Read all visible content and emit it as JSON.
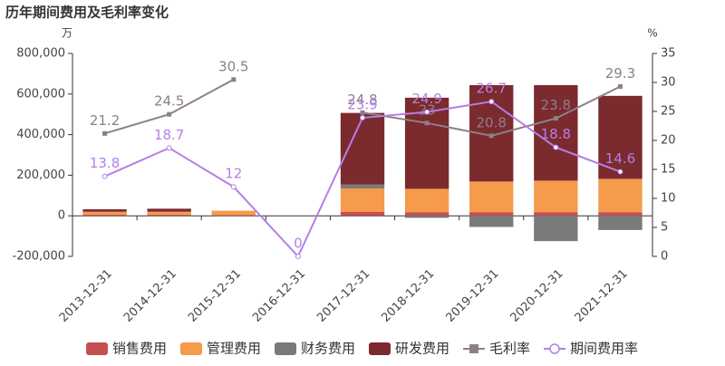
{
  "chart_data": {
    "type": "bar-line",
    "title": "历年期间费用及毛利率变化",
    "y_unit": "万",
    "y2_unit": "%",
    "categories": [
      "2013-12-31",
      "2014-12-31",
      "2015-12-31",
      "2016-12-31",
      "2017-12-31",
      "2018-12-31",
      "2019-12-31",
      "2020-12-31",
      "2021-12-31"
    ],
    "series": [
      {
        "name": "销售费用",
        "color": "#c4504f",
        "type": "bar",
        "values": [
          5000,
          5000,
          3000,
          0,
          20000,
          18000,
          18000,
          18000,
          18000
        ]
      },
      {
        "name": "管理费用",
        "color": "#f69a4c",
        "type": "bar",
        "values": [
          15000,
          15000,
          22000,
          0,
          115000,
          115000,
          151000,
          155000,
          164000
        ]
      },
      {
        "name": "财务费用",
        "color": "#7a7a7a",
        "type": "bar",
        "values": [
          0,
          0,
          0,
          0,
          20000,
          -10000,
          -55000,
          -125000,
          -70000
        ]
      },
      {
        "name": "研发费用",
        "color": "#7b2a2e",
        "type": "bar",
        "values": [
          12000,
          15000,
          0,
          0,
          352000,
          449000,
          475000,
          471000,
          409000
        ]
      },
      {
        "name": "毛利率",
        "color": "#8c8088",
        "type": "line",
        "marker": "square",
        "axis": "y2",
        "values": [
          21.2,
          24.5,
          30.5,
          null,
          24.8,
          23,
          20.8,
          23.8,
          29.3
        ]
      },
      {
        "name": "期间费用率",
        "color": "#b57ee6",
        "type": "line",
        "marker": "circle",
        "axis": "y2",
        "values": [
          13.8,
          18.7,
          12,
          0,
          23.9,
          24.9,
          26.7,
          18.8,
          14.6
        ]
      }
    ],
    "ylim": [
      -200000,
      800000
    ],
    "yticks": [
      {
        "value": -200000,
        "label": "-200,000"
      },
      0,
      {
        "value": 200000,
        "label": "200,000"
      },
      {
        "value": 400000,
        "label": "400,000"
      },
      {
        "value": 600000,
        "label": "600,000"
      },
      {
        "value": 800000,
        "label": "800,000"
      }
    ],
    "y2lim": [
      0,
      35
    ],
    "y2ticks": [
      0,
      5,
      10,
      15,
      20,
      25,
      30,
      35
    ],
    "grid": false
  }
}
